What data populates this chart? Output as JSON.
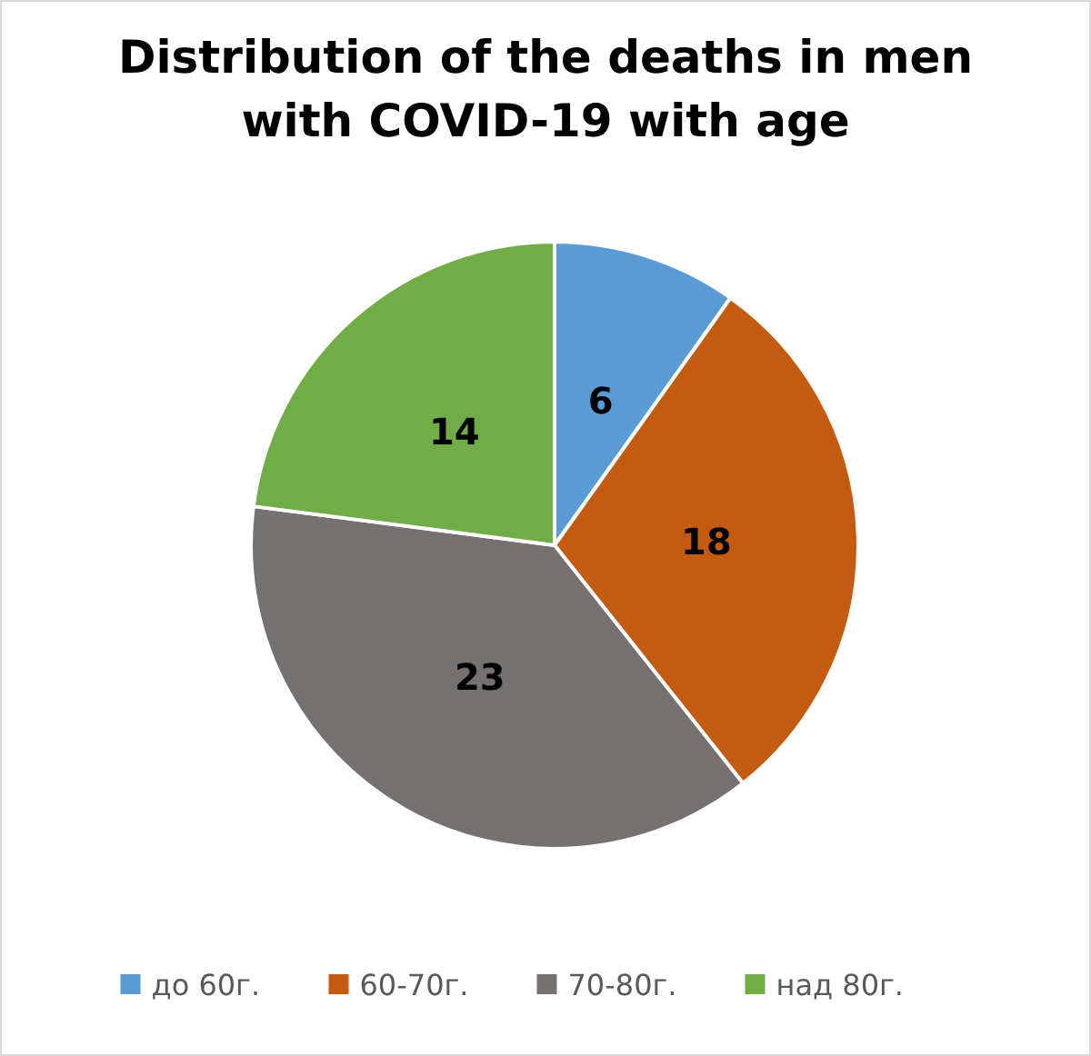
{
  "chart_data": {
    "type": "pie",
    "title": "Distribution of the deaths in men with COVID-19 with age",
    "categories": [
      "до 60г.",
      "60-70г.",
      "70-80г.",
      "над 80г."
    ],
    "values": [
      6,
      18,
      23,
      14
    ],
    "colors": [
      "#5b9bd5",
      "#c55a11",
      "#767171",
      "#70ad47"
    ],
    "data_labels": true,
    "legend": "bottom"
  }
}
